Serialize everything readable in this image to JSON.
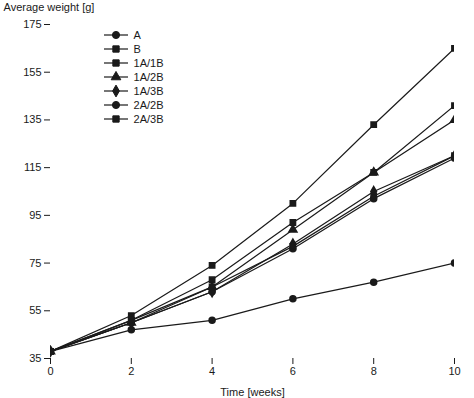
{
  "chart_data": {
    "type": "line",
    "xlabel": "Time [weeks]",
    "ylabel": "Average weight [g]",
    "x": [
      0,
      2,
      4,
      6,
      8,
      10
    ],
    "series": [
      {
        "name": "A",
        "values": [
          38,
          47,
          51,
          60,
          67,
          75
        ],
        "marker": "circle"
      },
      {
        "name": "B",
        "values": [
          38,
          53,
          74,
          100,
          133,
          165
        ],
        "marker": "square"
      },
      {
        "name": "1A/1B",
        "values": [
          38,
          51,
          68,
          92,
          113,
          141
        ],
        "marker": "square"
      },
      {
        "name": "1A/2B",
        "values": [
          38,
          50,
          65,
          89,
          113,
          135
        ],
        "marker": "triangle"
      },
      {
        "name": "1A/3B",
        "values": [
          38,
          50,
          63,
          83,
          105,
          120
        ],
        "marker": "diamond"
      },
      {
        "name": "2A/2B",
        "values": [
          38,
          50,
          63,
          81,
          102,
          119
        ],
        "marker": "circle"
      },
      {
        "name": "2A/3B",
        "values": [
          38,
          51,
          65,
          82,
          103,
          120
        ],
        "marker": "square"
      }
    ],
    "xlim": [
      0,
      10
    ],
    "ylim": [
      35,
      175
    ],
    "xticks": [
      0,
      2,
      4,
      6,
      8,
      10
    ],
    "yticks": [
      35,
      55,
      75,
      95,
      115,
      135,
      155,
      175
    ],
    "color": "#1a1a1a",
    "legend": "upper left",
    "grid": false
  }
}
